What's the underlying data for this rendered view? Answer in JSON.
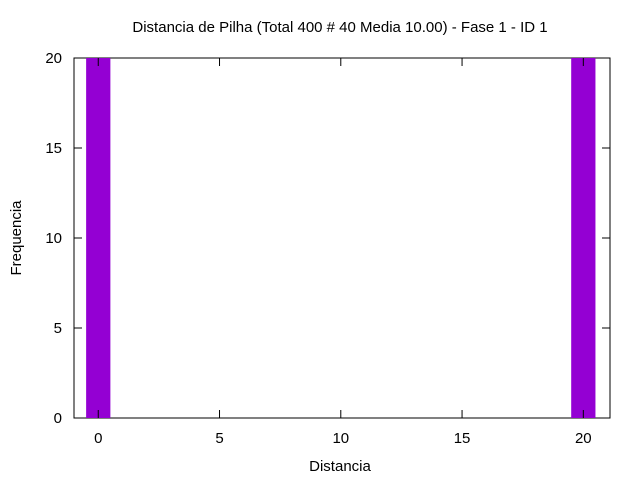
{
  "chart_data": {
    "type": "bar",
    "title": "Distancia de Pilha (Total 400 # 40 Media 10.00) - Fase  1 - ID 1",
    "xlabel": "Distancia",
    "ylabel": "Frequencia",
    "xlim": [
      -1,
      21.1
    ],
    "ylim": [
      0,
      20
    ],
    "x_ticks": [
      0,
      5,
      10,
      15,
      20
    ],
    "y_ticks": [
      0,
      5,
      10,
      15,
      20
    ],
    "bar_width": 1,
    "bar_color": "#9400d3",
    "grid": false,
    "legend": "none",
    "series": [
      {
        "x": [
          0,
          20
        ],
        "values": [
          20,
          20
        ]
      }
    ]
  }
}
